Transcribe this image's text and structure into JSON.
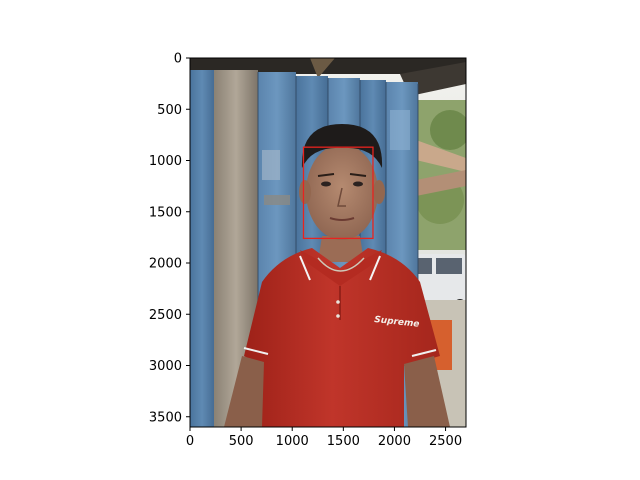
{
  "chart_data": {
    "type": "image",
    "title": "",
    "xlabel": "",
    "ylabel": "",
    "image_size": [
      2700,
      3600
    ],
    "xlim": [
      0,
      2700
    ],
    "ylim": [
      3600,
      0
    ],
    "y_inverted": true,
    "xticks": [
      0,
      500,
      1000,
      1500,
      2000,
      2500
    ],
    "yticks": [
      0,
      500,
      1000,
      1500,
      2000,
      2500,
      3000,
      3500
    ],
    "bounding_boxes": [
      {
        "x_min": 1110,
        "y_min": 870,
        "x_max": 1790,
        "y_max": 1760,
        "color": "#e8231e"
      }
    ],
    "shirt_text": "Supreme",
    "grid": false
  }
}
